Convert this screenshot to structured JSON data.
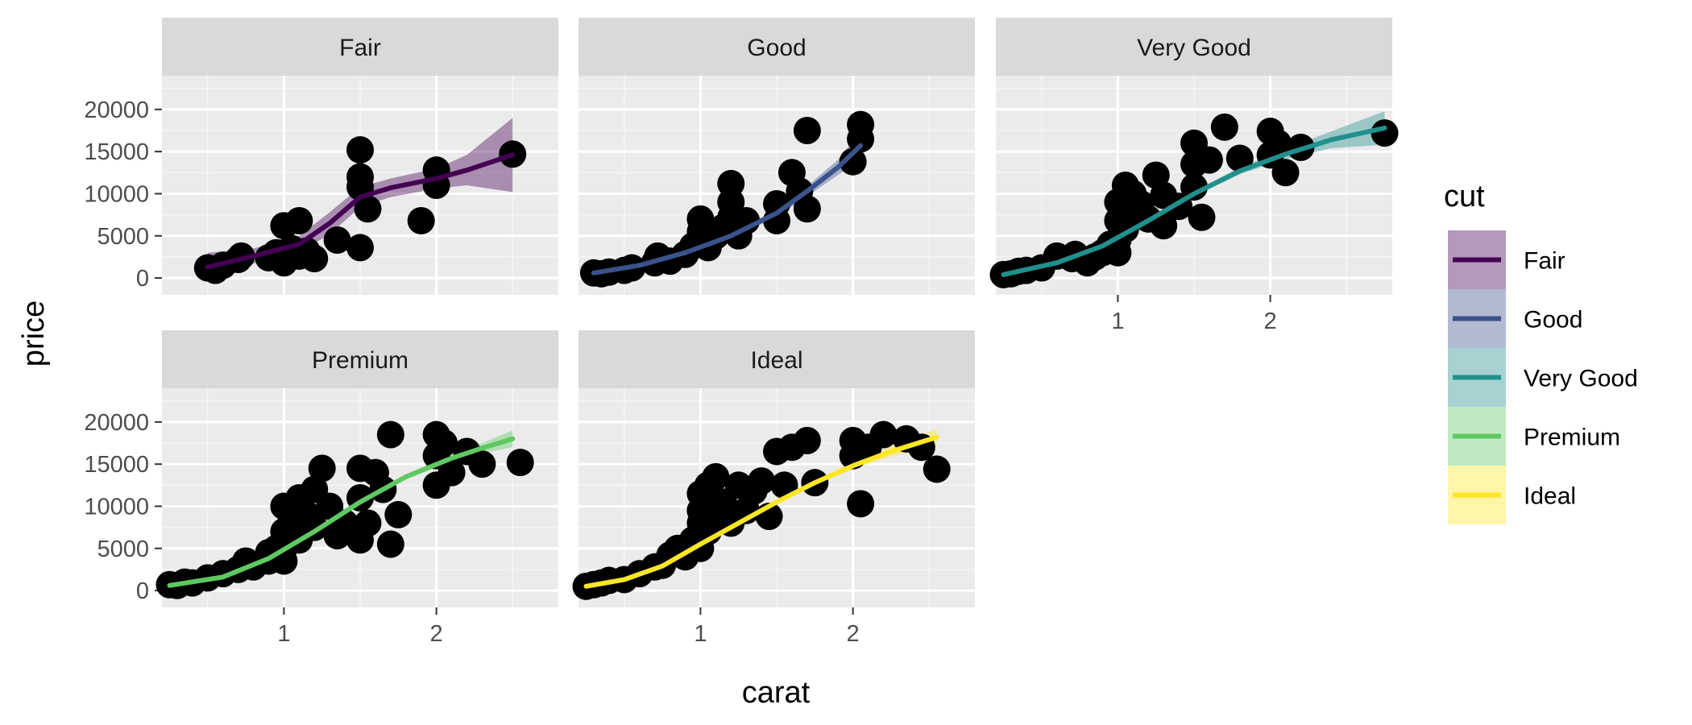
{
  "chart_data": {
    "type": "scatter",
    "facet_by": "cut",
    "xlabel": "carat",
    "ylabel": "price",
    "xlim": [
      0.2,
      2.8
    ],
    "ylim": [
      -2000,
      24000
    ],
    "x_ticks": [
      1,
      2
    ],
    "y_ticks": [
      0,
      5000,
      10000,
      15000,
      20000
    ],
    "grid": true,
    "legend": {
      "title": "cut",
      "position": "right"
    },
    "series": [
      {
        "name": "Fair",
        "color": "#440154",
        "points": [
          [
            0.5,
            1200
          ],
          [
            0.55,
            900
          ],
          [
            0.6,
            1500
          ],
          [
            0.7,
            2200
          ],
          [
            0.72,
            2600
          ],
          [
            0.9,
            2400
          ],
          [
            0.95,
            3000
          ],
          [
            1.0,
            1800
          ],
          [
            1.0,
            2800
          ],
          [
            1.0,
            6200
          ],
          [
            1.05,
            3500
          ],
          [
            1.1,
            6800
          ],
          [
            1.1,
            2600
          ],
          [
            1.15,
            3200
          ],
          [
            1.2,
            2300
          ],
          [
            1.35,
            4500
          ],
          [
            1.5,
            15200
          ],
          [
            1.5,
            12000
          ],
          [
            1.5,
            10800
          ],
          [
            1.5,
            3600
          ],
          [
            1.55,
            8200
          ],
          [
            1.9,
            6800
          ],
          [
            2.0,
            12800
          ],
          [
            2.0,
            11000
          ],
          [
            2.5,
            14700
          ]
        ],
        "smooth": [
          [
            0.5,
            1300
          ],
          [
            0.8,
            2600
          ],
          [
            1.1,
            4000
          ],
          [
            1.3,
            6500
          ],
          [
            1.5,
            9600
          ],
          [
            1.7,
            10700
          ],
          [
            2.0,
            11800
          ],
          [
            2.2,
            12800
          ],
          [
            2.5,
            14600
          ]
        ],
        "band": [
          [
            0.5,
            -400,
            3000
          ],
          [
            0.8,
            1700,
            3500
          ],
          [
            1.1,
            3000,
            5000
          ],
          [
            1.3,
            5200,
            7800
          ],
          [
            1.5,
            8400,
            10800
          ],
          [
            1.7,
            9600,
            11800
          ],
          [
            2.0,
            10600,
            13000
          ],
          [
            2.2,
            11000,
            14600
          ],
          [
            2.5,
            10200,
            19000
          ]
        ]
      },
      {
        "name": "Good",
        "color": "#3b528b",
        "points": [
          [
            0.3,
            600
          ],
          [
            0.35,
            500
          ],
          [
            0.4,
            700
          ],
          [
            0.5,
            900
          ],
          [
            0.55,
            1200
          ],
          [
            0.7,
            1800
          ],
          [
            0.72,
            2600
          ],
          [
            0.8,
            2000
          ],
          [
            0.9,
            2800
          ],
          [
            0.95,
            3800
          ],
          [
            1.0,
            4200
          ],
          [
            1.0,
            7000
          ],
          [
            1.0,
            5500
          ],
          [
            1.05,
            3600
          ],
          [
            1.1,
            5000
          ],
          [
            1.15,
            6000
          ],
          [
            1.2,
            7200
          ],
          [
            1.2,
            11200
          ],
          [
            1.2,
            9000
          ],
          [
            1.25,
            5000
          ],
          [
            1.3,
            6800
          ],
          [
            1.5,
            8800
          ],
          [
            1.5,
            6800
          ],
          [
            1.6,
            12500
          ],
          [
            1.65,
            10300
          ],
          [
            1.7,
            8200
          ],
          [
            1.7,
            17500
          ],
          [
            2.0,
            13800
          ],
          [
            2.05,
            18200
          ],
          [
            2.05,
            16500
          ]
        ],
        "smooth": [
          [
            0.3,
            600
          ],
          [
            0.6,
            1500
          ],
          [
            0.9,
            3000
          ],
          [
            1.2,
            5000
          ],
          [
            1.5,
            7700
          ],
          [
            1.7,
            10300
          ],
          [
            1.9,
            13100
          ],
          [
            2.05,
            15700
          ]
        ],
        "band": [
          [
            0.3,
            150,
            1050
          ],
          [
            0.6,
            1150,
            1850
          ],
          [
            0.9,
            2650,
            3350
          ],
          [
            1.2,
            4650,
            5350
          ],
          [
            1.5,
            7300,
            8100
          ],
          [
            1.7,
            9700,
            10900
          ],
          [
            1.9,
            12200,
            14000
          ],
          [
            2.05,
            14000,
            17400
          ]
        ]
      },
      {
        "name": "Very Good",
        "color": "#21908d",
        "points": [
          [
            0.25,
            400
          ],
          [
            0.3,
            500
          ],
          [
            0.35,
            800
          ],
          [
            0.4,
            900
          ],
          [
            0.5,
            1200
          ],
          [
            0.6,
            2600
          ],
          [
            0.7,
            2300
          ],
          [
            0.72,
            2800
          ],
          [
            0.8,
            1800
          ],
          [
            0.85,
            2500
          ],
          [
            0.9,
            3000
          ],
          [
            0.95,
            4000
          ],
          [
            1.0,
            6800
          ],
          [
            1.0,
            9000
          ],
          [
            1.0,
            4500
          ],
          [
            1.0,
            3000
          ],
          [
            1.05,
            11000
          ],
          [
            1.05,
            5800
          ],
          [
            1.1,
            10000
          ],
          [
            1.1,
            7500
          ],
          [
            1.15,
            8800
          ],
          [
            1.2,
            7000
          ],
          [
            1.25,
            12200
          ],
          [
            1.3,
            9800
          ],
          [
            1.3,
            6200
          ],
          [
            1.4,
            8500
          ],
          [
            1.5,
            16000
          ],
          [
            1.5,
            13500
          ],
          [
            1.5,
            10800
          ],
          [
            1.55,
            7200
          ],
          [
            1.6,
            14000
          ],
          [
            1.7,
            17900
          ],
          [
            1.8,
            14200
          ],
          [
            2.0,
            17400
          ],
          [
            2.0,
            14600
          ],
          [
            2.05,
            16000
          ],
          [
            2.1,
            12500
          ],
          [
            2.2,
            15500
          ],
          [
            2.75,
            17200
          ]
        ],
        "smooth": [
          [
            0.25,
            400
          ],
          [
            0.6,
            1800
          ],
          [
            0.9,
            3800
          ],
          [
            1.2,
            6800
          ],
          [
            1.5,
            10000
          ],
          [
            1.8,
            12700
          ],
          [
            2.1,
            14700
          ],
          [
            2.4,
            16400
          ],
          [
            2.75,
            17800
          ]
        ],
        "band": [
          [
            0.25,
            50,
            750
          ],
          [
            0.6,
            1500,
            2100
          ],
          [
            0.9,
            3500,
            4100
          ],
          [
            1.2,
            6500,
            7100
          ],
          [
            1.5,
            9700,
            10300
          ],
          [
            1.8,
            12300,
            13100
          ],
          [
            2.1,
            14100,
            15300
          ],
          [
            2.4,
            15400,
            17400
          ],
          [
            2.75,
            15800,
            19800
          ]
        ]
      },
      {
        "name": "Premium",
        "color": "#5ec962",
        "points": [
          [
            0.25,
            700
          ],
          [
            0.3,
            600
          ],
          [
            0.35,
            1000
          ],
          [
            0.4,
            900
          ],
          [
            0.5,
            1500
          ],
          [
            0.6,
            2000
          ],
          [
            0.7,
            2500
          ],
          [
            0.75,
            3500
          ],
          [
            0.8,
            2800
          ],
          [
            0.9,
            3500
          ],
          [
            0.9,
            4500
          ],
          [
            0.95,
            5000
          ],
          [
            1.0,
            10000
          ],
          [
            1.0,
            7000
          ],
          [
            1.0,
            5000
          ],
          [
            1.0,
            3500
          ],
          [
            1.05,
            8500
          ],
          [
            1.1,
            11000
          ],
          [
            1.1,
            6000
          ],
          [
            1.15,
            9000
          ],
          [
            1.2,
            12000
          ],
          [
            1.2,
            7500
          ],
          [
            1.25,
            14500
          ],
          [
            1.3,
            10000
          ],
          [
            1.35,
            6500
          ],
          [
            1.4,
            8000
          ],
          [
            1.5,
            14500
          ],
          [
            1.5,
            11000
          ],
          [
            1.5,
            6000
          ],
          [
            1.55,
            8000
          ],
          [
            1.6,
            14000
          ],
          [
            1.65,
            12000
          ],
          [
            1.7,
            18500
          ],
          [
            1.7,
            5500
          ],
          [
            1.75,
            9000
          ],
          [
            2.0,
            18500
          ],
          [
            2.0,
            16000
          ],
          [
            2.0,
            12500
          ],
          [
            2.05,
            17500
          ],
          [
            2.1,
            14000
          ],
          [
            2.2,
            16500
          ],
          [
            2.3,
            15000
          ],
          [
            2.55,
            15200
          ]
        ],
        "smooth": [
          [
            0.25,
            600
          ],
          [
            0.6,
            1600
          ],
          [
            0.9,
            3800
          ],
          [
            1.2,
            7000
          ],
          [
            1.5,
            10500
          ],
          [
            1.8,
            13500
          ],
          [
            2.1,
            15700
          ],
          [
            2.3,
            16900
          ],
          [
            2.5,
            18000
          ]
        ],
        "band": [
          [
            0.25,
            300,
            900
          ],
          [
            0.6,
            1350,
            1850
          ],
          [
            0.9,
            3550,
            4050
          ],
          [
            1.2,
            6750,
            7250
          ],
          [
            1.5,
            10250,
            10750
          ],
          [
            1.8,
            13200,
            13800
          ],
          [
            2.1,
            15300,
            16100
          ],
          [
            2.3,
            16300,
            17500
          ],
          [
            2.5,
            17000,
            19000
          ]
        ]
      },
      {
        "name": "Ideal",
        "color": "#fde725",
        "points": [
          [
            0.25,
            500
          ],
          [
            0.3,
            700
          ],
          [
            0.35,
            900
          ],
          [
            0.4,
            1200
          ],
          [
            0.5,
            1300
          ],
          [
            0.6,
            2000
          ],
          [
            0.7,
            2800
          ],
          [
            0.75,
            3000
          ],
          [
            0.8,
            4200
          ],
          [
            0.85,
            5000
          ],
          [
            0.9,
            4000
          ],
          [
            0.95,
            6000
          ],
          [
            1.0,
            8000
          ],
          [
            1.0,
            9500
          ],
          [
            1.0,
            11500
          ],
          [
            1.0,
            5000
          ],
          [
            1.05,
            12500
          ],
          [
            1.05,
            7000
          ],
          [
            1.1,
            13500
          ],
          [
            1.1,
            9000
          ],
          [
            1.15,
            10500
          ],
          [
            1.2,
            8000
          ],
          [
            1.25,
            12500
          ],
          [
            1.3,
            9500
          ],
          [
            1.35,
            11800
          ],
          [
            1.4,
            13000
          ],
          [
            1.45,
            8800
          ],
          [
            1.5,
            16500
          ],
          [
            1.55,
            12500
          ],
          [
            1.6,
            17000
          ],
          [
            1.7,
            17800
          ],
          [
            1.75,
            12800
          ],
          [
            2.0,
            17800
          ],
          [
            2.0,
            16000
          ],
          [
            2.05,
            10300
          ],
          [
            2.1,
            17000
          ],
          [
            2.2,
            18500
          ],
          [
            2.35,
            18000
          ],
          [
            2.45,
            17000
          ],
          [
            2.55,
            14400
          ]
        ],
        "smooth": [
          [
            0.25,
            500
          ],
          [
            0.5,
            1300
          ],
          [
            0.75,
            2900
          ],
          [
            1.0,
            5500
          ],
          [
            1.25,
            8000
          ],
          [
            1.5,
            10500
          ],
          [
            1.75,
            12800
          ],
          [
            2.0,
            14800
          ],
          [
            2.25,
            16500
          ],
          [
            2.55,
            18200
          ]
        ],
        "band": [
          [
            0.25,
            250,
            750
          ],
          [
            0.5,
            1100,
            1500
          ],
          [
            0.75,
            2700,
            3100
          ],
          [
            1.0,
            5300,
            5700
          ],
          [
            1.25,
            7800,
            8200
          ],
          [
            1.5,
            10300,
            10700
          ],
          [
            1.75,
            12500,
            13100
          ],
          [
            2.0,
            14400,
            15200
          ],
          [
            2.25,
            15900,
            17100
          ],
          [
            2.55,
            17200,
            19200
          ]
        ]
      }
    ]
  }
}
